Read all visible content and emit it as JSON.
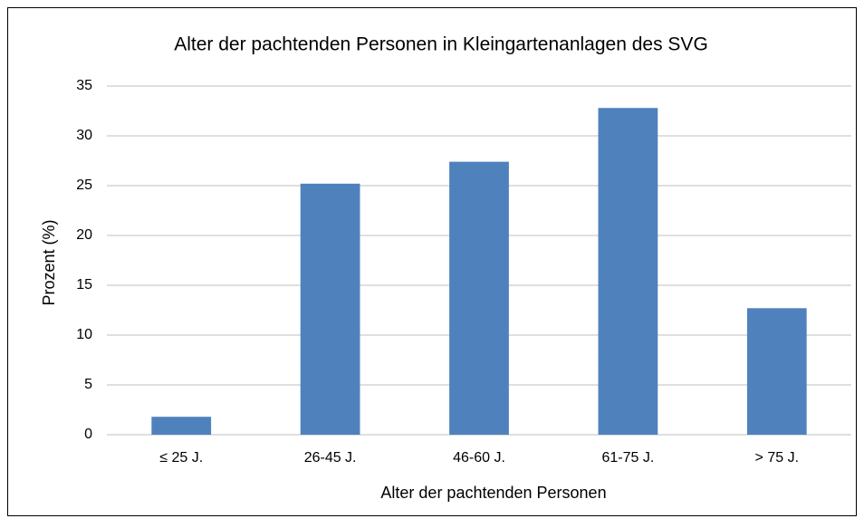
{
  "chart_data": {
    "type": "bar",
    "title": "Alter der pachtenden Personen in Kleingartenanlagen des SVG",
    "x_label": "Alter der pachtenden Personen",
    "y_label": "Prozent (%)",
    "categories": [
      "≤ 25 J.",
      "26-45 J.",
      "46-60 J.",
      "61-75 J.",
      "> 75 J."
    ],
    "values": [
      1.8,
      25.2,
      27.4,
      32.8,
      12.7
    ],
    "color": "#4f81bd",
    "ylim": [
      0,
      35
    ],
    "yticks": [
      0,
      5,
      10,
      15,
      20,
      25,
      30,
      35
    ],
    "grid": true
  }
}
